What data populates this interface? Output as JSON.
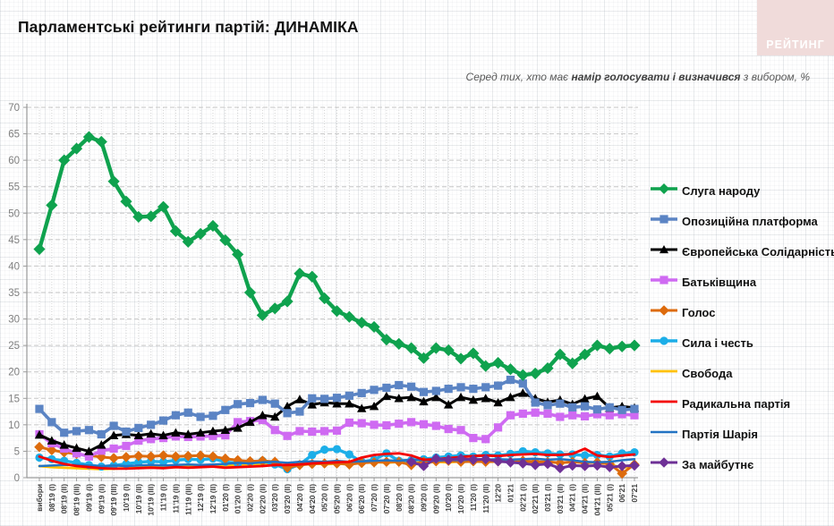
{
  "header": {
    "title": "Парламентські рейтинги партій: ДИНАМІКА",
    "logo": "РЕЙТИНГ",
    "subtitle_prefix": "Серед тих, хто має ",
    "subtitle_bold": "намір голосувати і визначився",
    "subtitle_suffix": " з вибором, %"
  },
  "chart_data": {
    "type": "line",
    "title": "Парламентські рейтинги партій: ДИНАМІКА",
    "ylabel": "",
    "xlabel": "",
    "ylim": [
      0,
      70
    ],
    "y_ticks": [
      0,
      5,
      10,
      15,
      20,
      25,
      30,
      35,
      40,
      45,
      50,
      55,
      60,
      65,
      70
    ],
    "grid": true,
    "legend_position": "right",
    "x_labels": [
      "вибори",
      "08'19 (I)",
      "08'19 (II)",
      "08'19 (III)",
      "09'19 (I)",
      "09'19 (II)",
      "09'19 (III)",
      "10'19 (I)",
      "10'19 (II)",
      "10'19 (III)",
      "11'19 (I)",
      "11'19 (II)",
      "11'19 (III)",
      "12'19 (I)",
      "12'19 (II)",
      "01'20 (I)",
      "01'20 (II)",
      "02'20 (I)",
      "02'20 (II)",
      "03'20 (I)",
      "03'20 (II)",
      "04'20 (I)",
      "04'20 (II)",
      "05'20 (I)",
      "05'20 (II)",
      "06'20 (I)",
      "06'20 (II)",
      "07'20 (I)",
      "07'20 (II)",
      "08'20 (I)",
      "08'20 (II)",
      "09'20 (I)",
      "09'20 (II)",
      "10'20 (I)",
      "10'20 (II)",
      "11'20 (I)",
      "11'20 (II)",
      "12'20",
      "01'21",
      "02'21 (I)",
      "02'21 (II)",
      "03'21 (I)",
      "03'21 (II)",
      "04'21 (I)",
      "04'21 (II)",
      "04'21 (III)",
      "05'21 (I)",
      "06'21",
      "07'21"
    ],
    "series": [
      {
        "id": "sluha-narodu",
        "name": "Слуга народу",
        "color": "#0fa24e",
        "marker": "diamond",
        "width": 4.4,
        "msize": 5.6,
        "values": [
          43.2,
          51.5,
          60,
          62.2,
          64.4,
          63.5,
          56,
          52.2,
          49.3,
          49.4,
          51.2,
          46.6,
          44.6,
          46.1,
          47.6,
          44.9,
          42.2,
          35,
          30.7,
          32,
          33.3,
          38.6,
          38,
          33.9,
          31.5,
          30.4,
          29.3,
          28.5,
          26.1,
          25.3,
          24.5,
          22.6,
          24.5,
          24.1,
          22.5,
          23.5,
          21.1,
          21.7,
          20.5,
          19.4,
          19.7,
          20.7,
          23.3,
          21.6,
          23.3,
          25,
          24.4,
          24.8,
          25
        ]
      },
      {
        "id": "opozytsiina-platforma",
        "name": "Опозиційна платформа",
        "color": "#5b84c4",
        "marker": "square",
        "width": 3.6,
        "msize": 4.6,
        "values": [
          13,
          10.5,
          8.5,
          8.8,
          9,
          8.2,
          9.8,
          8.7,
          9.4,
          10,
          10.8,
          11.8,
          12.3,
          11.5,
          11.7,
          12.8,
          13.9,
          14.1,
          14.7,
          14,
          12.2,
          12.5,
          15,
          14.9,
          15.1,
          15.5,
          16,
          16.6,
          17,
          17.5,
          17.2,
          16.2,
          16.4,
          16.8,
          17.1,
          16.8,
          17.1,
          17.4,
          18.5,
          17.8,
          14.2,
          13.7,
          14,
          13.3,
          13.5,
          12.9,
          13.3,
          12.8,
          13
        ]
      },
      {
        "id": "yevropeiska-solidarnist",
        "name": "Європейська Солідарність",
        "color": "#000000",
        "marker": "triangle",
        "width": 3.0,
        "msize": 5.2,
        "values": [
          8.1,
          7,
          6.2,
          5.6,
          5,
          6.2,
          8,
          8.2,
          8,
          8.3,
          8,
          8.5,
          8.2,
          8.5,
          8.8,
          9,
          9.4,
          10.5,
          11.8,
          11.5,
          13.5,
          14.8,
          13.8,
          14.2,
          14,
          14,
          13.1,
          13.5,
          15.4,
          15,
          15.2,
          14.4,
          15.2,
          13.8,
          15.2,
          14.7,
          15,
          14.2,
          15.2,
          16,
          15,
          14.3,
          14.7,
          13.9,
          14.9,
          15.4,
          13.2,
          13.5,
          13.2
        ]
      },
      {
        "id": "batkivshchyna",
        "name": "Батьківщина",
        "color": "#cf6af2",
        "marker": "square",
        "width": 3.6,
        "msize": 4.6,
        "values": [
          8.2,
          6.5,
          5.5,
          4.6,
          4,
          5.1,
          5.5,
          6,
          7,
          7.3,
          7.5,
          7.8,
          7.7,
          7.8,
          7.9,
          8,
          10.5,
          10.7,
          10.9,
          9,
          7.9,
          8.8,
          8.7,
          8.8,
          8.9,
          10.4,
          10.3,
          10,
          9.9,
          10.2,
          10.5,
          10.1,
          9.8,
          9.2,
          9,
          7.5,
          7.3,
          9.5,
          11.8,
          12.1,
          12.3,
          12.1,
          11.5,
          11.8,
          11.6,
          12,
          11.8,
          12,
          11.8
        ]
      },
      {
        "id": "holos",
        "name": "Голос",
        "color": "#dd6b0d",
        "marker": "diamond",
        "width": 3.0,
        "msize": 4.8,
        "values": [
          5.8,
          5.2,
          4.8,
          4.5,
          4.2,
          3.9,
          3.7,
          3.9,
          4.1,
          4,
          4.2,
          4,
          4.1,
          4.2,
          4,
          3.6,
          3.3,
          3.1,
          3.2,
          3,
          1.9,
          2.4,
          2.6,
          2.7,
          2.7,
          2.5,
          2.8,
          2.9,
          3,
          3,
          2.4,
          3,
          3.1,
          3.2,
          3,
          3.1,
          3,
          3.1,
          3,
          3.2,
          3,
          3,
          2.8,
          3,
          2.8,
          2.9,
          2.6,
          0.8,
          2.5
        ]
      },
      {
        "id": "syla-i-chest",
        "name": "Сила і честь",
        "color": "#1caee8",
        "marker": "circle",
        "width": 3.4,
        "msize": 4.6,
        "values": [
          3.8,
          3.5,
          3.2,
          2.8,
          2.4,
          2.1,
          2.3,
          2.6,
          2.9,
          3.1,
          3,
          3.3,
          3.5,
          3.4,
          3.6,
          3,
          2.7,
          3,
          3.2,
          2.5,
          1.6,
          2.5,
          4.3,
          5.3,
          5.4,
          4.4,
          3,
          3.4,
          4.6,
          3.2,
          3.3,
          3.5,
          3.8,
          4,
          4.2,
          4,
          4.3,
          4.2,
          4.5,
          5,
          4.8,
          4.6,
          4.4,
          4.4,
          4.2,
          4.3,
          4,
          4.6,
          4.8
        ]
      },
      {
        "id": "svoboda",
        "name": "Свобода",
        "color": "#ffc000",
        "marker": "none",
        "width": 2.8,
        "msize": 0,
        "values": [
          2.2,
          2,
          1.9,
          1.8,
          1.7,
          1.6,
          1.7,
          1.8,
          1.9,
          2,
          1.9,
          2,
          2.1,
          2,
          2.2,
          2.3,
          2.5,
          2.4,
          2.6,
          2.5,
          2.3,
          2.6,
          2.8,
          2.5,
          2.7,
          2.6,
          2.8,
          3,
          2.8,
          3,
          2.9,
          2.8,
          3,
          2.9,
          3.1,
          3,
          3.2,
          3,
          3.1,
          3,
          2.9,
          3,
          2.8,
          3,
          2.9,
          2.8,
          2.6,
          1.8,
          2.4
        ]
      },
      {
        "id": "radykalna-partiia",
        "name": "Радикальна партія",
        "color": "#f40000",
        "marker": "none",
        "width": 2.8,
        "msize": 0,
        "values": [
          4,
          3.2,
          2.6,
          2.2,
          2,
          1.8,
          1.7,
          1.7,
          1.8,
          1.9,
          1.8,
          2,
          1.9,
          2,
          2.1,
          1.9,
          2,
          2.1,
          2.2,
          2.4,
          2.4,
          2.5,
          2.7,
          2.8,
          2.9,
          3,
          3.8,
          4.3,
          4.5,
          4.6,
          4.2,
          3.4,
          3.5,
          3.7,
          3.9,
          4.1,
          4.2,
          4.1,
          4.3,
          4.4,
          4.5,
          4.3,
          4.3,
          4.5,
          5.5,
          4.2,
          3.9,
          4.2,
          4.4
        ]
      },
      {
        "id": "partiia-shariia",
        "name": "Партія Шарія",
        "color": "#2273c3",
        "marker": "none",
        "width": 2.5,
        "msize": 0,
        "values": [
          2.2,
          2.3,
          2.4,
          2.4,
          2.3,
          2.2,
          2.3,
          2.2,
          2.3,
          2.4,
          2.3,
          2.4,
          2.5,
          2.4,
          2.5,
          2.6,
          2.8,
          2.7,
          2.9,
          3,
          2.8,
          3,
          3.1,
          3,
          3.2,
          3,
          3.1,
          3.2,
          3.3,
          3.2,
          3.4,
          3.3,
          3.2,
          3.4,
          3.3,
          3.5,
          3.4,
          3.5,
          3.4,
          3.5,
          3.6,
          3.4,
          3.5,
          3.3,
          3,
          2.9,
          3,
          3.3,
          3.5
        ]
      },
      {
        "id": "za-maibutnie",
        "name": "За майбутнє",
        "color": "#6e3096",
        "marker": "diamond",
        "width": 3.0,
        "msize": 4.8,
        "values": [
          null,
          null,
          null,
          null,
          null,
          null,
          null,
          null,
          null,
          null,
          null,
          null,
          null,
          null,
          null,
          null,
          null,
          null,
          null,
          null,
          null,
          null,
          null,
          null,
          null,
          null,
          null,
          null,
          null,
          null,
          3,
          2.2,
          3.6,
          3.4,
          3.6,
          3.4,
          3.5,
          3.1,
          2.9,
          2.7,
          2.4,
          2.6,
          1.8,
          2.3,
          2.2,
          2.3,
          2,
          2.2,
          2.3
        ]
      }
    ]
  }
}
